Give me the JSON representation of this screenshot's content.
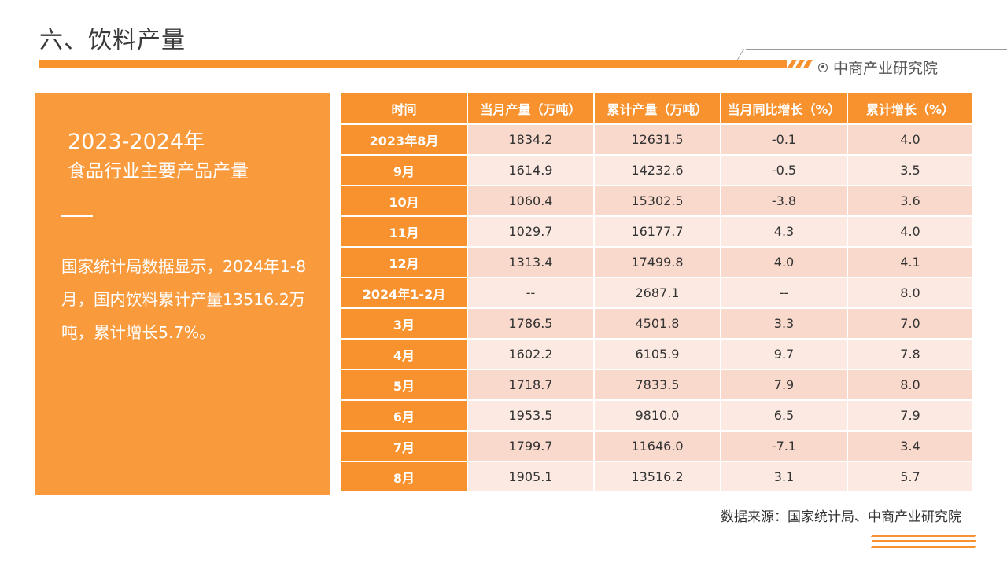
{
  "page": {
    "title": "六、饮料产量"
  },
  "brand": {
    "name": "中商产业研究院",
    "icon": "target-circle-icon"
  },
  "panel": {
    "title_line1": "2023-2024年",
    "title_line2": "食品行业主要产品产量",
    "body": "国家统计局数据显示，2024年1-8月，国内饮料累计产量13516.2万吨，累计增长5.7%。"
  },
  "table": {
    "headers": [
      "时间",
      "当月产量（万吨）",
      "累计产量（万吨）",
      "当月同比增长（%）",
      "累计增长（%）"
    ],
    "rows": [
      [
        "2023年8月",
        "1834.2",
        "12631.5",
        "-0.1",
        "4.0"
      ],
      [
        "9月",
        "1614.9",
        "14232.6",
        "-0.5",
        "3.5"
      ],
      [
        "10月",
        "1060.4",
        "15302.5",
        "-3.8",
        "3.6"
      ],
      [
        "11月",
        "1029.7",
        "16177.7",
        "4.3",
        "4.0"
      ],
      [
        "12月",
        "1313.4",
        "17499.8",
        "4.0",
        "4.1"
      ],
      [
        "2024年1-2月",
        "--",
        "2687.1",
        "--",
        "8.0"
      ],
      [
        "3月",
        "1786.5",
        "4501.8",
        "3.3",
        "7.0"
      ],
      [
        "4月",
        "1602.2",
        "6105.9",
        "9.7",
        "7.8"
      ],
      [
        "5月",
        "1718.7",
        "7833.5",
        "7.9",
        "8.0"
      ],
      [
        "6月",
        "1953.5",
        "9810.0",
        "6.5",
        "7.9"
      ],
      [
        "7月",
        "1799.7",
        "11646.0",
        "-7.1",
        "3.4"
      ],
      [
        "8月",
        "1905.1",
        "13516.2",
        "3.1",
        "5.7"
      ]
    ]
  },
  "source": "数据来源：国家统计局、中商产业研究院",
  "colors": {
    "accent": "#f7922f",
    "panel": "#f99a3c",
    "row_odd": "#f8d9cc",
    "row_even": "#fbe9e2"
  }
}
